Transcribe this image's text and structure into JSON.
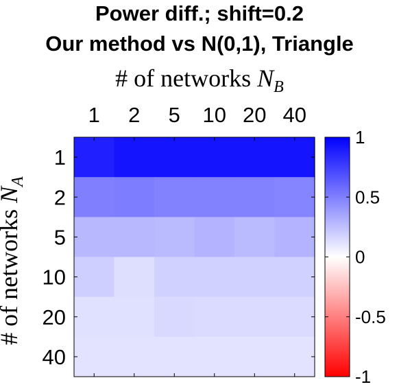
{
  "chart_data": {
    "type": "heatmap",
    "title": "Power diff.; shift=0.2",
    "subtitle": "Our method vs N(0,1), Triangle",
    "xlabel": "# of networks N_B",
    "ylabel": "# of networks N_A",
    "x_categories": [
      "1",
      "2",
      "5",
      "10",
      "20",
      "40"
    ],
    "y_categories": [
      "1",
      "2",
      "5",
      "10",
      "20",
      "40"
    ],
    "values": [
      [
        0.88,
        0.92,
        0.92,
        0.92,
        0.92,
        0.92
      ],
      [
        0.5,
        0.51,
        0.49,
        0.49,
        0.49,
        0.48
      ],
      [
        0.28,
        0.28,
        0.27,
        0.3,
        0.27,
        0.3
      ],
      [
        0.19,
        0.13,
        0.18,
        0.18,
        0.18,
        0.18
      ],
      [
        0.12,
        0.12,
        0.15,
        0.14,
        0.14,
        0.14
      ],
      [
        0.11,
        0.11,
        0.11,
        0.11,
        0.11,
        0.11
      ]
    ],
    "colorbar": {
      "min": -1,
      "max": 1,
      "ticks": [
        "1",
        "0.5",
        "0",
        "-0.5",
        "-1"
      ],
      "tick_values": [
        1,
        0.5,
        0,
        -0.5,
        -1
      ]
    },
    "colormap": {
      "negative": "#ff0000",
      "zero": "#ffffff",
      "positive": "#0000ff"
    }
  }
}
